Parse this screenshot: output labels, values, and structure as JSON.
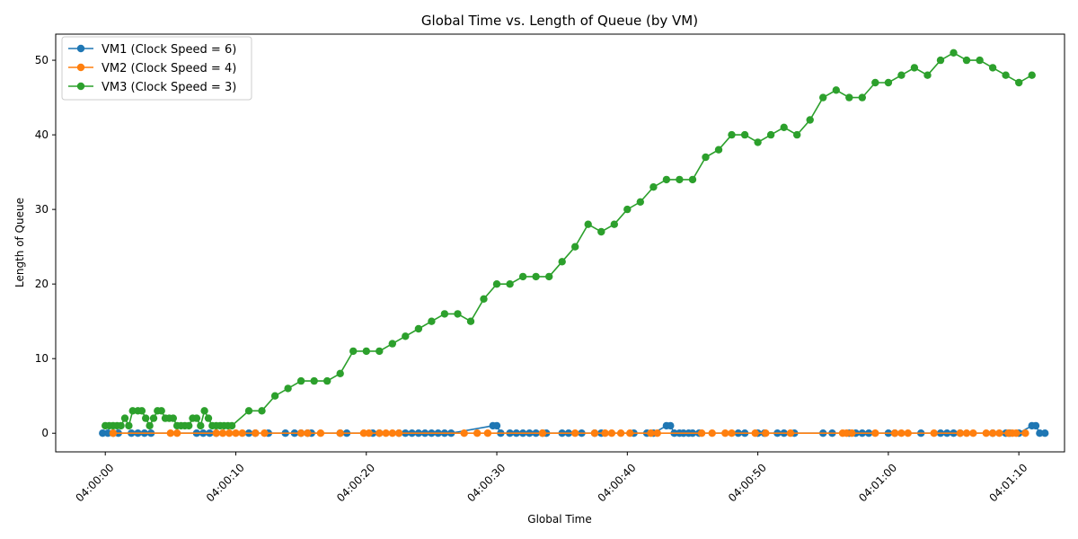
{
  "chart_data": {
    "type": "line",
    "title": "Global Time vs. Length of Queue (by VM)",
    "xlabel": "Global Time",
    "ylabel": "Length of Queue",
    "x_unit": "seconds after 04:00:00",
    "xlim": [
      -3.8,
      73.5
    ],
    "ylim": [
      -2.5,
      53.5
    ],
    "x_ticks": [
      {
        "value": 0,
        "label": "04:00:00"
      },
      {
        "value": 10,
        "label": "04:00:10"
      },
      {
        "value": 20,
        "label": "04:00:20"
      },
      {
        "value": 30,
        "label": "04:00:30"
      },
      {
        "value": 40,
        "label": "04:00:40"
      },
      {
        "value": 50,
        "label": "04:00:50"
      },
      {
        "value": 60,
        "label": "04:01:00"
      },
      {
        "value": 70,
        "label": "04:01:10"
      }
    ],
    "y_ticks": [
      0,
      10,
      20,
      30,
      40,
      50
    ],
    "legend_position": "top-left",
    "series": [
      {
        "name": "VM1 (Clock Speed = 6)",
        "color": "#1f77b4",
        "x": [
          -0.2,
          0.2,
          0.6,
          1.0,
          2.0,
          2.5,
          3.0,
          3.5,
          7.0,
          7.5,
          8.0,
          8.5,
          11.0,
          11.5,
          12.5,
          13.8,
          14.5,
          15.0,
          15.5,
          15.8,
          18.0,
          18.5,
          20.5,
          21.0,
          22.5,
          23.0,
          23.5,
          24.0,
          24.5,
          25.0,
          25.5,
          26.0,
          26.5,
          29.7,
          30.0,
          30.3,
          31.0,
          31.5,
          32.0,
          32.5,
          33.0,
          33.5,
          33.8,
          35.0,
          35.5,
          36.5,
          37.5,
          38.0,
          40.5,
          41.5,
          42.0,
          43.0,
          43.3,
          43.6,
          44.0,
          44.3,
          44.7,
          45.0,
          45.5,
          48.5,
          49.0,
          50.0,
          50.5,
          51.5,
          52.0,
          52.8,
          55.0,
          55.7,
          57.0,
          57.5,
          58.0,
          58.5,
          60.0,
          60.5,
          62.5,
          64.0,
          64.5,
          65.0,
          65.5,
          68.0,
          69.0,
          69.3,
          70.0,
          71.0,
          71.3,
          71.6,
          72.0
        ],
        "values": [
          0,
          0,
          0,
          0,
          0,
          0,
          0,
          0,
          0,
          0,
          0,
          0,
          0,
          0,
          0,
          0,
          0,
          0,
          0,
          0,
          0,
          0,
          0,
          0,
          0,
          0,
          0,
          0,
          0,
          0,
          0,
          0,
          0,
          1,
          1,
          0,
          0,
          0,
          0,
          0,
          0,
          0,
          0,
          0,
          0,
          0,
          0,
          0,
          0,
          0,
          0,
          1,
          1,
          0,
          0,
          0,
          0,
          0,
          0,
          0,
          0,
          0,
          0,
          0,
          0,
          0,
          0,
          0,
          0,
          0,
          0,
          0,
          0,
          0,
          0,
          0,
          0,
          0,
          0,
          0,
          0,
          0,
          0,
          1,
          1,
          0,
          0
        ]
      },
      {
        "name": "VM2 (Clock Speed = 4)",
        "color": "#ff7f0e",
        "x": [
          0.6,
          5.0,
          5.5,
          8.5,
          9.0,
          9.5,
          10.0,
          10.5,
          11.5,
          12.2,
          15.0,
          15.5,
          16.5,
          18.0,
          19.8,
          20.2,
          21.0,
          21.5,
          22.0,
          22.5,
          27.5,
          28.5,
          29.3,
          33.5,
          36.0,
          37.5,
          38.3,
          38.8,
          39.5,
          40.2,
          41.8,
          42.3,
          45.7,
          46.5,
          47.5,
          48.0,
          49.8,
          50.6,
          52.5,
          56.5,
          56.8,
          57.2,
          59.0,
          60.5,
          61.0,
          61.5,
          63.5,
          65.5,
          66.0,
          66.5,
          67.5,
          68.0,
          68.5,
          69.2,
          69.5,
          69.8,
          70.5
        ],
        "values": [
          0,
          0,
          0,
          0,
          0,
          0,
          0,
          0,
          0,
          0,
          0,
          0,
          0,
          0,
          0,
          0,
          0,
          0,
          0,
          0,
          0,
          0,
          0,
          0,
          0,
          0,
          0,
          0,
          0,
          0,
          0,
          0,
          0,
          0,
          0,
          0,
          0,
          0,
          0,
          0,
          0,
          0,
          0,
          0,
          0,
          0,
          0,
          0,
          0,
          0,
          0,
          0,
          0,
          0,
          0,
          0,
          0
        ]
      },
      {
        "name": "VM3 (Clock Speed = 3)",
        "color": "#2ca02c",
        "x": [
          0.0,
          0.3,
          0.6,
          0.9,
          1.2,
          1.5,
          1.8,
          2.1,
          2.5,
          2.8,
          3.1,
          3.4,
          3.7,
          4.0,
          4.3,
          4.6,
          4.9,
          5.2,
          5.5,
          5.8,
          6.1,
          6.4,
          6.7,
          7.0,
          7.3,
          7.6,
          7.9,
          8.2,
          8.5,
          8.8,
          9.1,
          9.4,
          9.7,
          11.0,
          12.0,
          13.0,
          14.0,
          15.0,
          16.0,
          17.0,
          18.0,
          19.0,
          20.0,
          21.0,
          22.0,
          23.0,
          24.0,
          25.0,
          26.0,
          27.0,
          28.0,
          29.0,
          30.0,
          31.0,
          32.0,
          33.0,
          34.0,
          35.0,
          36.0,
          37.0,
          38.0,
          39.0,
          40.0,
          41.0,
          42.0,
          43.0,
          44.0,
          45.0,
          46.0,
          47.0,
          48.0,
          49.0,
          50.0,
          51.0,
          52.0,
          53.0,
          54.0,
          55.0,
          56.0,
          57.0,
          58.0,
          59.0,
          60.0,
          61.0,
          62.0,
          63.0,
          64.0,
          65.0,
          66.0,
          67.0,
          68.0,
          69.0,
          70.0,
          71.0
        ],
        "values": [
          1,
          1,
          1,
          1,
          1,
          2,
          1,
          3,
          3,
          3,
          2,
          1,
          2,
          3,
          3,
          2,
          2,
          2,
          1,
          1,
          1,
          1,
          2,
          2,
          1,
          3,
          2,
          1,
          1,
          1,
          1,
          1,
          1,
          3,
          3,
          5,
          6,
          7,
          7,
          7,
          8,
          11,
          11,
          11,
          12,
          13,
          14,
          15,
          16,
          16,
          15,
          18,
          20,
          20,
          21,
          21,
          21,
          23,
          25,
          28,
          27,
          28,
          30,
          31,
          33,
          34,
          34,
          34,
          37,
          38,
          40,
          40,
          39,
          40,
          41,
          40,
          42,
          45,
          46,
          45,
          45,
          47,
          47,
          48,
          49,
          48,
          50,
          51,
          50,
          50,
          49,
          48,
          47,
          48
        ]
      }
    ]
  }
}
